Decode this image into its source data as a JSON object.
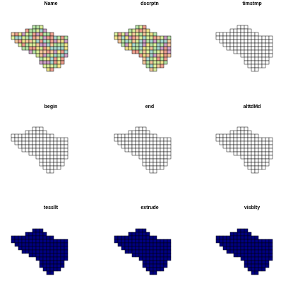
{
  "chart_data": {
    "type": "heatmap",
    "layout": {
      "rows": 3,
      "cols": 3
    },
    "panels": [
      {
        "title": "Name",
        "fill": "mixed"
      },
      {
        "title": "dscrptn",
        "fill": "mixed"
      },
      {
        "title": "timstmp",
        "fill": "none"
      },
      {
        "title": "begin",
        "fill": "none"
      },
      {
        "title": "end",
        "fill": "none"
      },
      {
        "title": "alttdMd",
        "fill": "none"
      },
      {
        "title": "tessllt",
        "fill": "solid"
      },
      {
        "title": "extrude",
        "fill": "solid"
      },
      {
        "title": "visblty",
        "fill": "solid"
      }
    ],
    "colors": {
      "palette": [
        "#d9ee9a",
        "#ee9f8f",
        "#f5c79d",
        "#b6e3a4",
        "#cfa0c8",
        "#f0e38a",
        "#a9d8d0"
      ],
      "solid": "#000080",
      "border": "#000000"
    }
  }
}
